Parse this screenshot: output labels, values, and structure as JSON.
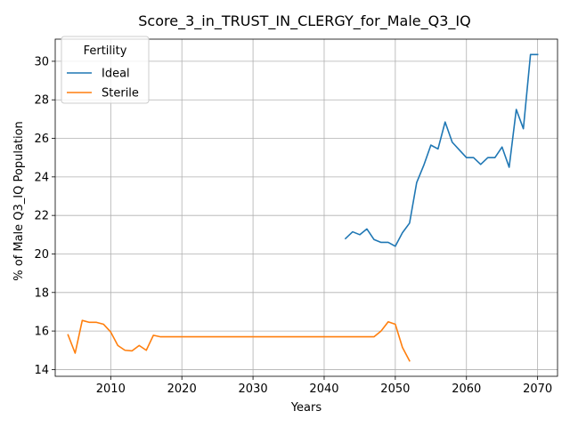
{
  "chart_data": {
    "type": "line",
    "title": "Score_3_in_TRUST_IN_CLERGY_for_Male_Q3_IQ",
    "xlabel": "Years",
    "ylabel": "% of Male Q3_IQ Population",
    "xlim": [
      2002.2,
      2072.8
    ],
    "ylim": [
      13.65,
      31.15
    ],
    "xticks": [
      2010,
      2020,
      2030,
      2040,
      2050,
      2060,
      2070
    ],
    "yticks": [
      14,
      16,
      18,
      20,
      22,
      24,
      26,
      28,
      30
    ],
    "grid": true,
    "legend": {
      "title": "Fertility",
      "position": "top-left"
    },
    "series": [
      {
        "name": "Ideal",
        "color": "#1f77b4",
        "x": [
          2043,
          2044,
          2045,
          2046,
          2047,
          2048,
          2049,
          2050,
          2051,
          2052,
          2053,
          2054,
          2055,
          2056,
          2057,
          2058,
          2059,
          2060,
          2061,
          2062,
          2063,
          2064,
          2065,
          2066,
          2067,
          2068,
          2069,
          2070
        ],
        "y": [
          20.8,
          21.15,
          21.0,
          21.3,
          20.75,
          20.6,
          20.6,
          20.4,
          21.1,
          21.6,
          23.7,
          24.6,
          25.65,
          25.45,
          26.85,
          25.8,
          25.4,
          25.0,
          25.0,
          24.65,
          25.0,
          25.0,
          25.55,
          24.5,
          27.5,
          26.5,
          30.35,
          30.35
        ]
      },
      {
        "name": "Sterile",
        "color": "#ff7f0e",
        "x": [
          2004,
          2005,
          2006,
          2007,
          2008,
          2009,
          2010,
          2011,
          2012,
          2013,
          2014,
          2015,
          2016,
          2017,
          2018,
          2019,
          2020,
          2021,
          2022,
          2023,
          2024,
          2025,
          2026,
          2027,
          2028,
          2029,
          2030,
          2031,
          2032,
          2033,
          2034,
          2035,
          2036,
          2037,
          2038,
          2039,
          2040,
          2041,
          2042,
          2043,
          2044,
          2045,
          2046,
          2047,
          2048,
          2049,
          2050,
          2051,
          2052
        ],
        "y": [
          15.8,
          14.85,
          16.55,
          16.45,
          16.45,
          16.35,
          15.95,
          15.25,
          15.0,
          14.97,
          15.25,
          15.0,
          15.78,
          15.7,
          15.7,
          15.7,
          15.7,
          15.7,
          15.7,
          15.7,
          15.7,
          15.7,
          15.7,
          15.7,
          15.7,
          15.7,
          15.7,
          15.7,
          15.7,
          15.7,
          15.7,
          15.7,
          15.7,
          15.7,
          15.7,
          15.7,
          15.7,
          15.7,
          15.7,
          15.7,
          15.7,
          15.7,
          15.7,
          15.7,
          16.0,
          16.48,
          16.35,
          15.15,
          14.45
        ]
      }
    ]
  }
}
